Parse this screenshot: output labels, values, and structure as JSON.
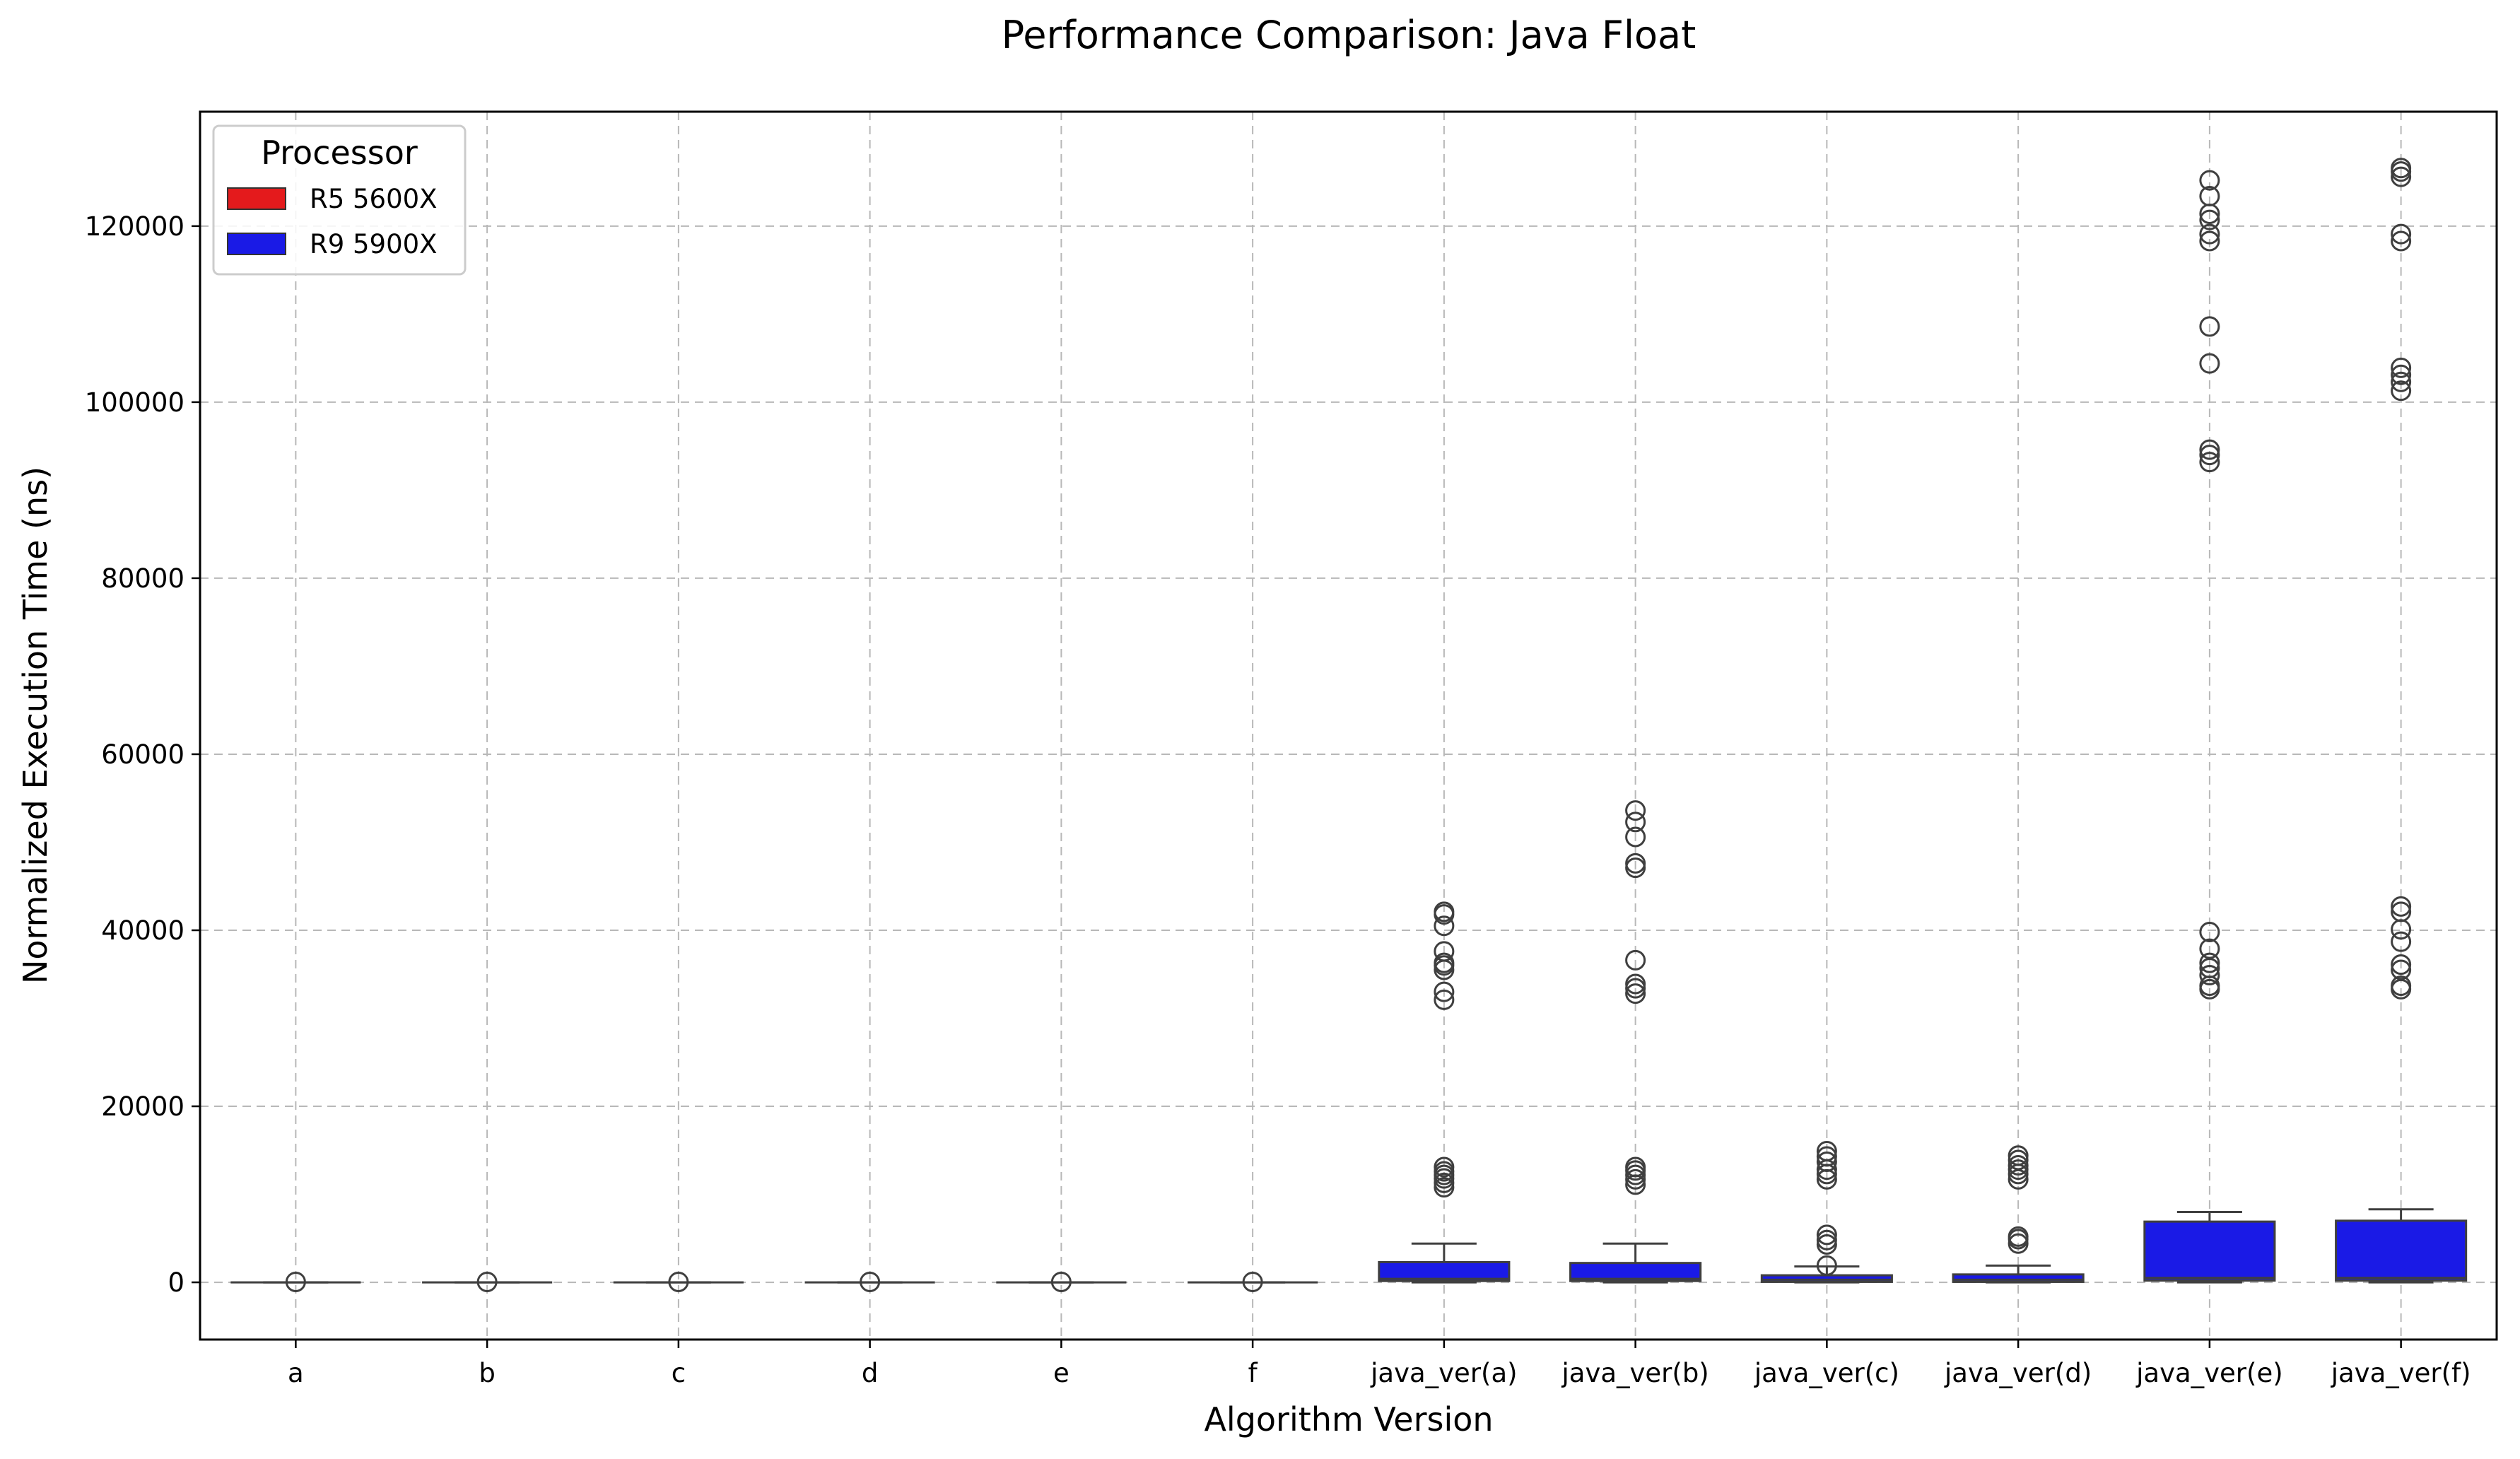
{
  "chart_data": {
    "type": "box",
    "title": "Performance Comparison: Java Float",
    "xlabel": "Algorithm Version",
    "ylabel": "Normalized Execution Time (ns)",
    "ylim": [
      -6500,
      133000
    ],
    "yticks": [
      0,
      20000,
      40000,
      60000,
      80000,
      100000,
      120000
    ],
    "grid": true,
    "legend": {
      "title": "Processor",
      "placement": "top-left",
      "entries": [
        {
          "label": "R5 5600X",
          "color": "#e41a1c"
        },
        {
          "label": "R9 5900X",
          "color": "#1a1ae6"
        }
      ]
    },
    "categories": [
      "a",
      "b",
      "c",
      "d",
      "e",
      "f",
      "java_ver(a)",
      "java_ver(b)",
      "java_ver(c)",
      "java_ver(d)",
      "java_ver(e)",
      "java_ver(f)"
    ],
    "series": [
      {
        "name": "R9 5900X",
        "color": "#1a1ae6",
        "boxes": [
          {
            "whislo": 0,
            "q1": 0,
            "med": 0,
            "q3": 0,
            "whishi": 0,
            "fliers": [
              50
            ]
          },
          {
            "whislo": 0,
            "q1": 0,
            "med": 0,
            "q3": 0,
            "whishi": 0,
            "fliers": [
              50
            ]
          },
          {
            "whislo": 0,
            "q1": 0,
            "med": 0,
            "q3": 0,
            "whishi": 0,
            "fliers": [
              50
            ]
          },
          {
            "whislo": 0,
            "q1": 0,
            "med": 0,
            "q3": 0,
            "whishi": 0,
            "fliers": [
              50
            ]
          },
          {
            "whislo": 0,
            "q1": 0,
            "med": 0,
            "q3": 0,
            "whishi": 0,
            "fliers": [
              50
            ]
          },
          {
            "whislo": 0,
            "q1": 0,
            "med": 0,
            "q3": 0,
            "whishi": 0,
            "fliers": [
              50
            ]
          },
          {
            "whislo": 0,
            "q1": 150,
            "med": 400,
            "q3": 2300,
            "whishi": 4400,
            "fliers": [
              10800,
              11300,
              11800,
              12200,
              12600,
              13100,
              32100,
              33000,
              35500,
              36000,
              36300,
              37600,
              40500,
              41800,
              42100
            ]
          },
          {
            "whislo": 0,
            "q1": 150,
            "med": 400,
            "q3": 2200,
            "whishi": 4400,
            "fliers": [
              11100,
              11700,
              12200,
              12700,
              13100,
              32800,
              33400,
              33900,
              36600,
              47100,
              47600,
              50600,
              52300,
              53600
            ]
          },
          {
            "whislo": 0,
            "q1": 50,
            "med": 300,
            "q3": 800,
            "whishi": 1800,
            "fliers": [
              1900,
              4300,
              4800,
              5400,
              11700,
              12300,
              12800,
              13700,
              14300,
              14900
            ]
          },
          {
            "whislo": 0,
            "q1": 50,
            "med": 300,
            "q3": 900,
            "whishi": 1900,
            "fliers": [
              4400,
              4900,
              5200,
              11700,
              12300,
              12800,
              13300,
              13900,
              14400
            ]
          },
          {
            "whislo": 0,
            "q1": 200,
            "med": 500,
            "q3": 6900,
            "whishi": 8000,
            "fliers": [
              33300,
              33700,
              34900,
              35700,
              36300,
              37900,
              39800,
              93200,
              94000,
              94600,
              104400,
              108600,
              118300,
              119100,
              120700,
              121400,
              123400,
              125200
            ]
          },
          {
            "whislo": 0,
            "q1": 200,
            "med": 500,
            "q3": 7000,
            "whishi": 8300,
            "fliers": [
              33300,
              33700,
              35500,
              36100,
              38700,
              40100,
              42100,
              42700,
              101300,
              102300,
              103100,
              103900,
              118300,
              119100,
              125600,
              126200,
              126600
            ]
          }
        ]
      }
    ]
  }
}
